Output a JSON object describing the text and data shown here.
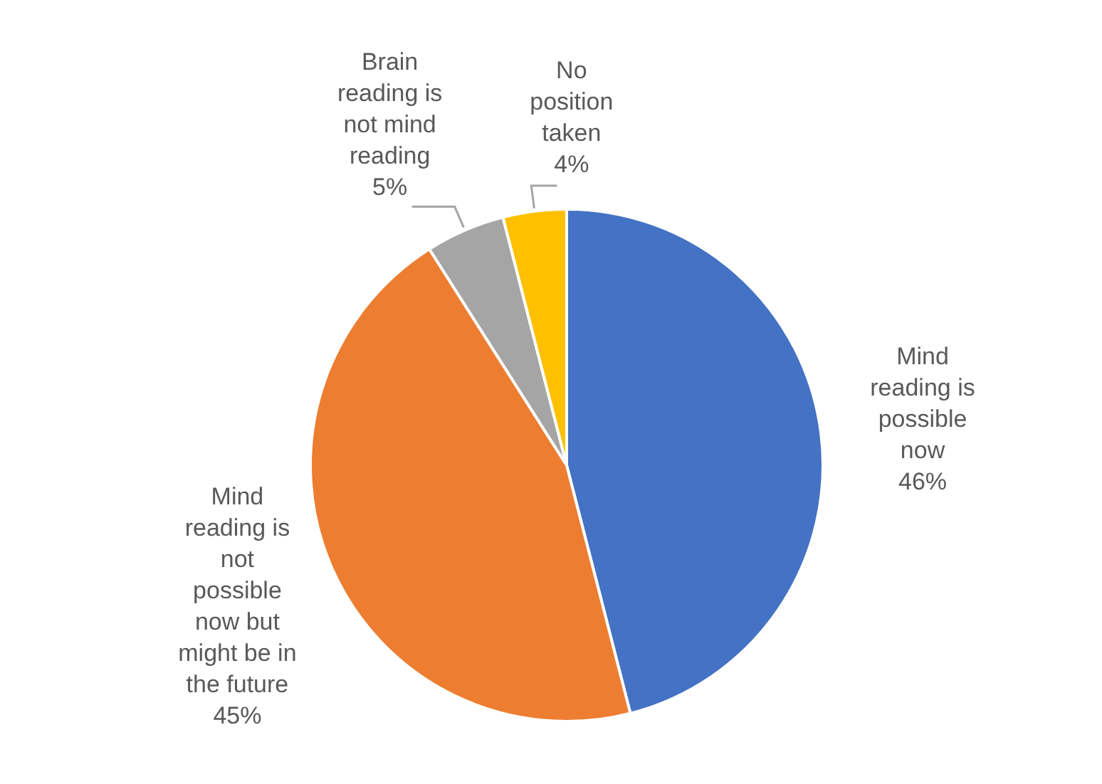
{
  "chart_data": {
    "type": "pie",
    "categories": [
      "Mind reading is possible now",
      "Mind reading is not possible now but might be in the future",
      "Brain reading is not mind reading",
      "No position taken"
    ],
    "values": [
      46,
      45,
      5,
      4
    ],
    "colors": [
      "#4472c4",
      "#ed7d31",
      "#a5a5a5",
      "#ffc000"
    ],
    "value_labels": [
      "46%",
      "45%",
      "5%",
      "4%"
    ],
    "legend": false
  }
}
